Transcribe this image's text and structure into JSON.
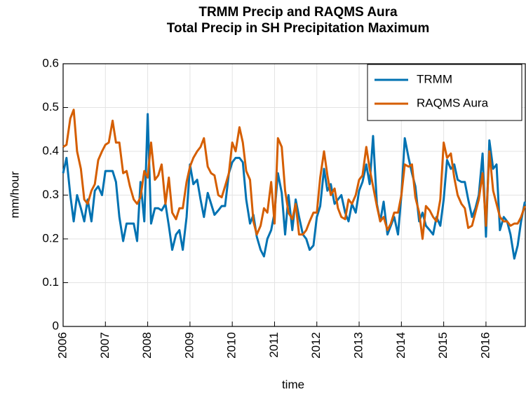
{
  "chart_data": {
    "type": "line",
    "title": [
      "TRMM Precip and RAQMS Aura",
      "Total Precip in SH Precipitation Maximum"
    ],
    "x_label": "time",
    "y_label": "mm/hour",
    "x": [
      2006,
      2006.08,
      2006.17,
      2006.25,
      2006.33,
      2006.42,
      2006.5,
      2006.58,
      2006.67,
      2006.75,
      2006.83,
      2006.92,
      2007,
      2007.08,
      2007.17,
      2007.25,
      2007.33,
      2007.42,
      2007.5,
      2007.58,
      2007.67,
      2007.75,
      2007.83,
      2007.92,
      2008,
      2008.08,
      2008.17,
      2008.25,
      2008.33,
      2008.42,
      2008.5,
      2008.58,
      2008.67,
      2008.75,
      2008.83,
      2008.92,
      2009,
      2009.08,
      2009.17,
      2009.25,
      2009.33,
      2009.42,
      2009.5,
      2009.58,
      2009.67,
      2009.75,
      2009.83,
      2009.92,
      2010,
      2010.08,
      2010.17,
      2010.25,
      2010.33,
      2010.42,
      2010.5,
      2010.58,
      2010.67,
      2010.75,
      2010.83,
      2010.92,
      2011,
      2011.08,
      2011.17,
      2011.25,
      2011.33,
      2011.42,
      2011.5,
      2011.58,
      2011.67,
      2011.75,
      2011.83,
      2011.92,
      2012,
      2012.08,
      2012.17,
      2012.25,
      2012.33,
      2012.42,
      2012.5,
      2012.58,
      2012.67,
      2012.75,
      2012.83,
      2012.92,
      2013,
      2013.08,
      2013.17,
      2013.25,
      2013.33,
      2013.42,
      2013.5,
      2013.58,
      2013.67,
      2013.75,
      2013.83,
      2013.92,
      2014,
      2014.08,
      2014.17,
      2014.25,
      2014.33,
      2014.42,
      2014.5,
      2014.58,
      2014.67,
      2014.75,
      2014.83,
      2014.92,
      2015,
      2015.08,
      2015.17,
      2015.25,
      2015.33,
      2015.42,
      2015.5,
      2015.58,
      2015.67,
      2015.75,
      2015.83,
      2015.92,
      2016,
      2016.08,
      2016.17,
      2016.25,
      2016.33,
      2016.42,
      2016.5,
      2016.58,
      2016.67,
      2016.75,
      2016.83,
      2016.92
    ],
    "series": [
      {
        "name": "TRMM",
        "color": "#0072b2",
        "values": [
          0.35,
          0.385,
          0.3,
          0.24,
          0.3,
          0.27,
          0.24,
          0.29,
          0.24,
          0.31,
          0.32,
          0.3,
          0.355,
          0.355,
          0.355,
          0.33,
          0.25,
          0.195,
          0.235,
          0.235,
          0.235,
          0.195,
          0.33,
          0.24,
          0.485,
          0.235,
          0.27,
          0.27,
          0.265,
          0.28,
          0.23,
          0.175,
          0.21,
          0.22,
          0.175,
          0.25,
          0.37,
          0.325,
          0.335,
          0.29,
          0.25,
          0.305,
          0.28,
          0.255,
          0.265,
          0.275,
          0.275,
          0.35,
          0.375,
          0.385,
          0.385,
          0.375,
          0.29,
          0.235,
          0.255,
          0.205,
          0.175,
          0.16,
          0.2,
          0.22,
          0.26,
          0.35,
          0.305,
          0.21,
          0.3,
          0.22,
          0.29,
          0.25,
          0.21,
          0.2,
          0.175,
          0.185,
          0.25,
          0.275,
          0.36,
          0.31,
          0.325,
          0.28,
          0.29,
          0.3,
          0.26,
          0.24,
          0.28,
          0.26,
          0.31,
          0.33,
          0.37,
          0.325,
          0.435,
          0.28,
          0.24,
          0.285,
          0.21,
          0.23,
          0.25,
          0.21,
          0.3,
          0.43,
          0.385,
          0.35,
          0.32,
          0.24,
          0.26,
          0.23,
          0.22,
          0.21,
          0.25,
          0.23,
          0.29,
          0.38,
          0.36,
          0.37,
          0.335,
          0.33,
          0.33,
          0.29,
          0.25,
          0.27,
          0.3,
          0.395,
          0.205,
          0.425,
          0.36,
          0.37,
          0.22,
          0.25,
          0.24,
          0.21,
          0.155,
          0.185,
          0.24,
          0.285
        ]
      },
      {
        "name": "RAQMS Aura",
        "color": "#d55e00",
        "values": [
          0.41,
          0.415,
          0.475,
          0.495,
          0.4,
          0.36,
          0.29,
          0.28,
          0.31,
          0.325,
          0.38,
          0.4,
          0.415,
          0.42,
          0.47,
          0.42,
          0.42,
          0.35,
          0.355,
          0.32,
          0.29,
          0.28,
          0.295,
          0.355,
          0.34,
          0.42,
          0.335,
          0.345,
          0.37,
          0.28,
          0.34,
          0.26,
          0.245,
          0.27,
          0.27,
          0.33,
          0.365,
          0.385,
          0.4,
          0.41,
          0.43,
          0.365,
          0.35,
          0.345,
          0.3,
          0.295,
          0.32,
          0.35,
          0.42,
          0.4,
          0.455,
          0.42,
          0.355,
          0.335,
          0.24,
          0.21,
          0.23,
          0.27,
          0.26,
          0.33,
          0.235,
          0.43,
          0.41,
          0.31,
          0.26,
          0.245,
          0.28,
          0.21,
          0.21,
          0.22,
          0.24,
          0.26,
          0.26,
          0.34,
          0.4,
          0.345,
          0.3,
          0.315,
          0.27,
          0.25,
          0.245,
          0.29,
          0.28,
          0.3,
          0.335,
          0.345,
          0.41,
          0.36,
          0.32,
          0.275,
          0.24,
          0.25,
          0.22,
          0.235,
          0.26,
          0.26,
          0.3,
          0.37,
          0.365,
          0.37,
          0.295,
          0.26,
          0.2,
          0.275,
          0.265,
          0.25,
          0.24,
          0.29,
          0.42,
          0.385,
          0.395,
          0.34,
          0.3,
          0.28,
          0.27,
          0.225,
          0.23,
          0.26,
          0.29,
          0.35,
          0.23,
          0.4,
          0.31,
          0.28,
          0.25,
          0.24,
          0.24,
          0.23,
          0.235,
          0.235,
          0.25,
          0.275
        ]
      }
    ],
    "xlim": [
      2006,
      2016.93
    ],
    "ylim": [
      0,
      0.6
    ],
    "xticks": [
      2006,
      2007,
      2008,
      2009,
      2010,
      2011,
      2012,
      2013,
      2014,
      2015,
      2016
    ],
    "yticks": [
      0,
      0.1,
      0.2,
      0.3,
      0.4,
      0.5,
      0.6
    ],
    "grid": true,
    "legend": "upper right"
  }
}
